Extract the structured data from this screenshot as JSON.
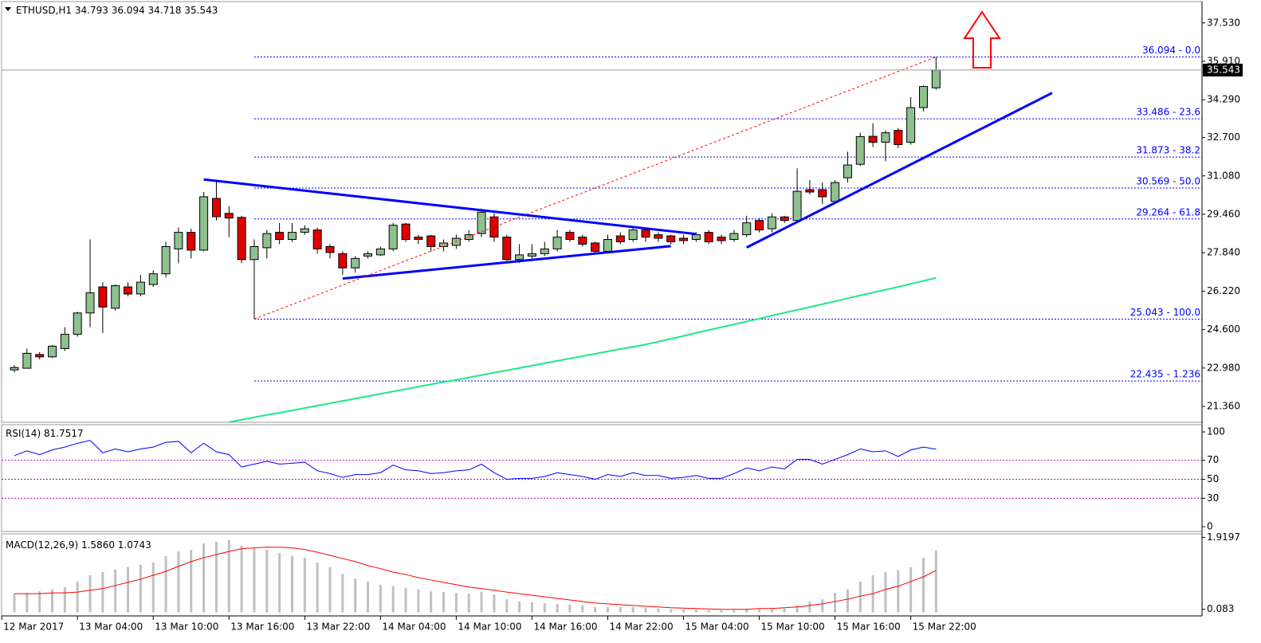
{
  "chart_data": [
    {
      "type": "candlestick",
      "title": "ETHUSD,H1",
      "open": [
        22.9,
        22.97,
        23.55,
        23.45,
        23.8,
        24.4,
        25.3,
        26.4,
        25.5,
        26.4,
        26.1,
        26.5,
        26.95,
        28.0,
        28.7,
        27.95,
        30.13,
        29.5,
        29.33,
        27.55,
        28.05,
        28.7,
        28.4,
        28.7,
        28.8,
        28.1,
        27.8,
        27.2,
        27.7,
        27.75,
        28.0,
        29.05,
        28.5,
        28.55,
        28.1,
        28.15,
        28.4,
        28.65,
        29.35,
        28.5,
        27.55,
        27.7,
        27.8,
        28.0,
        28.7,
        28.5,
        28.25,
        27.9,
        28.55,
        28.4,
        28.8,
        28.6,
        28.55,
        28.45,
        28.4,
        28.7,
        28.5,
        28.4,
        28.6,
        29.2,
        28.85,
        29.35,
        29.2,
        30.5,
        30.5,
        30.0,
        31.0,
        31.57,
        32.75,
        32.5,
        33.0,
        32.5,
        33.96,
        34.793
      ],
      "high": [
        23.1,
        23.8,
        23.65,
        23.95,
        24.7,
        25.35,
        28.4,
        26.6,
        26.5,
        26.6,
        26.9,
        27.1,
        28.3,
        28.9,
        28.85,
        30.4,
        30.9,
        29.8,
        29.4,
        28.4,
        28.8,
        29.1,
        29.1,
        29.0,
        28.9,
        28.2,
        27.9,
        27.7,
        27.9,
        28.1,
        29.1,
        29.1,
        28.6,
        28.6,
        28.4,
        28.6,
        28.8,
        29.7,
        29.5,
        28.6,
        28.2,
        28.2,
        28.3,
        28.8,
        28.8,
        28.6,
        28.3,
        28.6,
        28.7,
        28.9,
        28.9,
        28.7,
        28.6,
        28.6,
        28.7,
        28.8,
        28.6,
        28.8,
        29.4,
        29.3,
        29.5,
        29.4,
        31.4,
        30.9,
        30.8,
        30.9,
        32.1,
        32.9,
        33.3,
        33.0,
        33.1,
        34.4,
        34.9,
        36.094
      ],
      "low": [
        22.8,
        23.0,
        23.35,
        23.4,
        23.7,
        24.3,
        24.7,
        24.45,
        25.4,
        26.0,
        26.0,
        26.4,
        26.8,
        27.4,
        27.6,
        27.9,
        29.2,
        28.5,
        27.4,
        25.043,
        27.6,
        28.2,
        28.3,
        28.6,
        27.8,
        27.6,
        26.9,
        27.0,
        27.6,
        27.7,
        27.9,
        28.3,
        28.2,
        27.9,
        27.9,
        28.0,
        28.3,
        28.5,
        28.3,
        27.5,
        27.4,
        27.6,
        27.7,
        27.9,
        28.3,
        28.1,
        27.8,
        27.8,
        28.2,
        28.3,
        28.3,
        28.3,
        28.2,
        28.2,
        28.3,
        28.2,
        28.2,
        28.3,
        28.5,
        28.7,
        28.7,
        29.1,
        29.1,
        30.3,
        29.9,
        29.9,
        30.8,
        31.5,
        32.3,
        31.7,
        32.25,
        32.4,
        33.8,
        34.718
      ],
      "close": [
        23.0,
        23.6,
        23.45,
        23.9,
        24.4,
        25.3,
        26.15,
        25.55,
        26.45,
        26.1,
        26.6,
        26.95,
        28.1,
        28.7,
        27.95,
        30.2,
        29.36,
        29.3,
        27.55,
        28.1,
        28.65,
        28.4,
        28.7,
        28.85,
        28.0,
        27.85,
        27.2,
        27.6,
        27.8,
        28.0,
        29.0,
        28.4,
        28.4,
        28.1,
        28.25,
        28.45,
        28.6,
        29.55,
        28.5,
        27.55,
        27.75,
        27.8,
        28.0,
        28.5,
        28.4,
        28.2,
        27.9,
        28.4,
        28.3,
        28.8,
        28.5,
        28.45,
        28.3,
        28.35,
        28.6,
        28.3,
        28.35,
        28.65,
        29.1,
        28.8,
        29.35,
        29.2,
        30.43,
        30.4,
        30.2,
        30.8,
        31.54,
        32.74,
        32.5,
        32.9,
        32.4,
        33.96,
        34.85,
        35.543
      ],
      "ma": [
        null,
        null,
        null,
        null,
        null,
        null,
        null,
        null,
        null,
        null,
        null,
        null,
        null,
        null,
        null,
        null,
        null,
        20.7,
        20.8,
        20.9,
        21.0,
        21.09,
        21.19,
        21.29,
        21.39,
        21.49,
        21.59,
        21.69,
        21.79,
        21.89,
        21.99,
        22.09,
        22.19,
        22.29,
        22.39,
        22.48,
        22.58,
        22.68,
        22.78,
        22.88,
        22.98,
        23.08,
        23.18,
        23.28,
        23.38,
        23.48,
        23.58,
        23.68,
        23.78,
        23.87,
        23.97,
        24.09,
        24.21,
        24.33,
        24.46,
        24.58,
        24.7,
        24.82,
        24.94,
        25.06,
        25.19,
        25.31,
        25.43,
        25.55,
        25.67,
        25.79,
        25.92,
        26.04,
        26.16,
        26.28,
        26.4,
        26.53,
        26.65,
        26.78
      ],
      "ma_color": "#1ee88a",
      "up_color": "#8fc08f",
      "down_color": "#e00000",
      "fib_start": 19,
      "fib": [
        {
          "value": 36.094,
          "label": "36.094 - 0.0"
        },
        {
          "value": 33.486,
          "label": "33.486 - 23.6"
        },
        {
          "value": 31.873,
          "label": "31.873 - 38.2"
        },
        {
          "value": 30.569,
          "label": "30.569 - 50.0"
        },
        {
          "value": 29.264,
          "label": "29.264 - 61.8"
        },
        {
          "value": 25.043,
          "label": "25.043 - 100.0"
        },
        {
          "value": 22.435,
          "label": "22.435 - 1.236"
        }
      ],
      "trendlines": [
        {
          "x": [
            15,
            54
          ],
          "y": [
            30.93,
            28.63
          ],
          "color": "#0000ff"
        },
        {
          "x": [
            26,
            52
          ],
          "y": [
            26.75,
            28.12
          ],
          "color": "#0000ff"
        },
        {
          "x": [
            58,
            82.2
          ],
          "y": [
            28.06,
            34.58
          ],
          "color": "#0000ff"
        },
        {
          "x": [
            19,
            73
          ],
          "y": [
            25.043,
            36.094
          ],
          "color": "#ff0000",
          "dotted": true
        }
      ],
      "ylim": [
        20.69,
        38.43
      ],
      "yticks": [
        {
          "value": 37.53,
          "label": "37.530"
        },
        {
          "value": 35.91,
          "label": "35.910"
        },
        {
          "value": 34.29,
          "label": "34.290"
        },
        {
          "value": 32.7,
          "label": "32.700"
        },
        {
          "value": 31.08,
          "label": "31.080"
        },
        {
          "value": 29.46,
          "label": "29.460"
        },
        {
          "value": 27.84,
          "label": "27.840"
        },
        {
          "value": 26.22,
          "label": "26.220"
        },
        {
          "value": 24.6,
          "label": "24.600"
        },
        {
          "value": 22.98,
          "label": "22.980"
        },
        {
          "value": 21.36,
          "label": "21.360"
        }
      ]
    },
    {
      "type": "line",
      "title": "RSI(14)",
      "values": [
        75,
        80,
        76,
        81,
        84,
        88,
        91,
        78,
        82,
        79,
        82,
        84,
        89,
        90,
        78,
        88,
        79,
        76,
        63,
        66,
        69,
        66,
        67,
        68,
        59,
        56,
        52,
        55,
        55,
        57,
        65,
        60,
        59,
        56,
        57,
        59,
        60,
        66,
        57,
        50,
        51,
        51,
        53,
        57,
        55,
        53,
        50,
        55,
        53,
        57,
        54,
        54,
        51,
        52,
        54,
        51,
        51,
        56,
        62,
        59,
        63,
        61,
        71,
        71,
        66,
        71,
        76,
        82,
        79,
        80,
        74,
        81,
        84,
        81.7517
      ],
      "color": "#0000ff",
      "levels": [
        70,
        50,
        30
      ],
      "level_color": "#c000c0",
      "ylim": [
        -5,
        107.6
      ],
      "yticks": [
        100,
        70,
        50,
        30,
        0
      ]
    },
    {
      "type": "bar",
      "title": "MACD(12,26,9)",
      "histogram": [
        0.48,
        0.5,
        0.54,
        0.59,
        0.65,
        0.79,
        0.95,
        1.03,
        1.1,
        1.16,
        1.22,
        1.28,
        1.44,
        1.56,
        1.6,
        1.77,
        1.81,
        1.85,
        1.71,
        1.65,
        1.6,
        1.52,
        1.44,
        1.4,
        1.28,
        1.16,
        0.99,
        0.87,
        0.79,
        0.71,
        0.67,
        0.63,
        0.59,
        0.54,
        0.52,
        0.5,
        0.48,
        0.52,
        0.46,
        0.34,
        0.28,
        0.26,
        0.24,
        0.22,
        0.2,
        0.18,
        0.14,
        0.14,
        0.14,
        0.14,
        0.12,
        0.1,
        0.08,
        0.08,
        0.08,
        0.06,
        0.06,
        0.06,
        0.08,
        0.08,
        0.1,
        0.1,
        0.18,
        0.28,
        0.34,
        0.5,
        0.59,
        0.79,
        0.95,
        1.03,
        1.08,
        1.16,
        1.4,
        1.586
      ],
      "histogram_labels": {
        "73": "1.5860"
      },
      "signal": [
        0.48,
        0.48,
        0.48,
        0.5,
        0.5,
        0.52,
        0.57,
        0.61,
        0.69,
        0.77,
        0.85,
        0.95,
        1.05,
        1.18,
        1.3,
        1.4,
        1.48,
        1.56,
        1.63,
        1.65,
        1.67,
        1.67,
        1.65,
        1.61,
        1.54,
        1.46,
        1.38,
        1.3,
        1.2,
        1.12,
        1.03,
        0.97,
        0.89,
        0.83,
        0.77,
        0.71,
        0.65,
        0.61,
        0.57,
        0.52,
        0.48,
        0.44,
        0.4,
        0.36,
        0.32,
        0.28,
        0.24,
        0.22,
        0.2,
        0.18,
        0.16,
        0.14,
        0.12,
        0.11,
        0.1,
        0.09,
        0.08,
        0.08,
        0.08,
        0.1,
        0.1,
        0.12,
        0.14,
        0.18,
        0.22,
        0.28,
        0.34,
        0.42,
        0.48,
        0.59,
        0.67,
        0.79,
        0.91,
        1.0743
      ],
      "bar_color": "#c0c0c0",
      "signal_color": "#ff0000",
      "ylim": [
        -0.088,
        2.01
      ],
      "yticks": [
        1.9197,
        0.083
      ],
      "xticks": [
        {
          "value": -1,
          "label": "12 Mar 2017"
        },
        {
          "value": 5,
          "label": "13 Mar 04:00"
        },
        {
          "value": 11,
          "label": "13 Mar 10:00"
        },
        {
          "value": 17,
          "label": "13 Mar 16:00"
        },
        {
          "value": 23,
          "label": "13 Mar 22:00"
        },
        {
          "value": 29,
          "label": "14 Mar 04:00"
        },
        {
          "value": 35,
          "label": "14 Mar 10:00"
        },
        {
          "value": 41,
          "label": "14 Mar 16:00"
        },
        {
          "value": 47,
          "label": "14 Mar 22:00"
        },
        {
          "value": 53,
          "label": "15 Mar 04:00"
        },
        {
          "value": 59,
          "label": "15 Mar 10:00"
        },
        {
          "value": 65,
          "label": "15 Mar 16:00"
        },
        {
          "value": 71,
          "label": "15 Mar 22:00"
        }
      ]
    }
  ]
}
